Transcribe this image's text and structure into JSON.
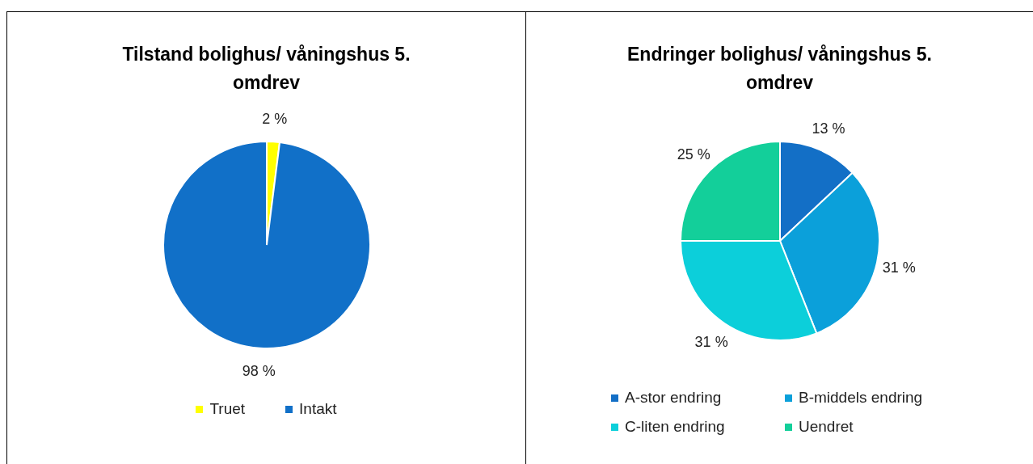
{
  "chart_data": [
    {
      "type": "pie",
      "title": "Tilstand bolighus/ våningshus 5. omdrev",
      "categories": [
        "Truet",
        "Intakt"
      ],
      "values": [
        2,
        98
      ],
      "value_labels": [
        "2 %",
        "98 %"
      ],
      "colors": [
        "#ffff00",
        "#1170c8"
      ],
      "legend": "bottom"
    },
    {
      "type": "pie",
      "title": "Endringer bolighus/ våningshus 5. omdrev",
      "categories": [
        "A-stor endring",
        "B-middels endring",
        "C-liten endring",
        "Uendret"
      ],
      "values": [
        13,
        31,
        31,
        25
      ],
      "value_labels": [
        "13 %",
        "31 %",
        "31 %",
        "25 %"
      ],
      "colors": [
        "#136fc6",
        "#0ba0da",
        "#0ccfda",
        "#13cf9a"
      ],
      "legend": "bottom"
    }
  ]
}
